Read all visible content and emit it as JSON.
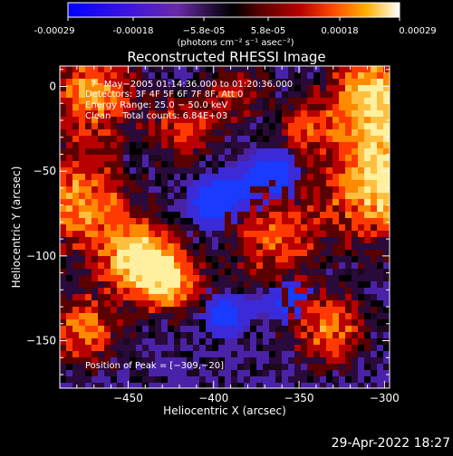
{
  "colorbar": {
    "tick_labels": [
      "-0.00029",
      "-0.00018",
      "−5.8e-05",
      "5.8e-05",
      "0.00018",
      "0.00029"
    ],
    "units": "(photons cm⁻² s⁻¹ asec⁻²)",
    "colormap": [
      "#0000ff",
      "#4a1fd0",
      "#6c2aa8",
      "#000000",
      "#5a0000",
      "#b80000",
      "#ff4a00",
      "#ff9a00",
      "#ffd84a",
      "#ffffff"
    ]
  },
  "plot": {
    "title": "Reconstructed RHESSI Image",
    "xlabel": "Heliocentric X (arcsec)",
    "ylabel": "Heliocentric Y (arcsec)",
    "x_range": [
      -490,
      -297
    ],
    "y_range": [
      -178,
      12
    ],
    "xticks": [
      -450,
      -400,
      -350,
      -300
    ],
    "yticks": [
      0,
      -50,
      -100,
      -150
    ],
    "annotations": [
      "7−May−2005 01:14:36.000 to 01:20:36.000",
      "Detectors: 3F 4F 5F 6F 7F 8F, Att 0",
      "Energy Range: 25.0 − 50.0 keV",
      "Clean    Total counts: 6.84E+03"
    ],
    "peak_label": "Position of Peak = [−309,−20]"
  },
  "timestamp": "29-Apr-2022 18:27"
}
